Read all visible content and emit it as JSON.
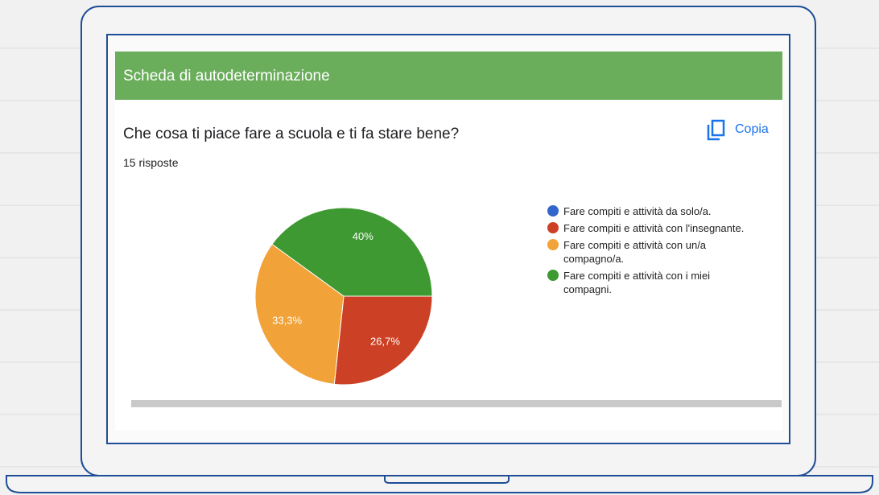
{
  "header": "Scheda di autodeterminazione",
  "copy_button": "Copia",
  "chart_data": {
    "type": "pie",
    "title": "Che cosa ti piace fare a scuola e ti fa stare bene?",
    "subtitle": "15 risposte",
    "categories": [
      "Fare compiti e attività da solo/a.",
      "Fare compiti e attività con l'insegnante.",
      "Fare compiti e attività con un/a compagno/a.",
      "Fare compiti e attività con i miei compagni."
    ],
    "values": [
      0,
      26.7,
      33.3,
      40
    ],
    "value_labels": [
      null,
      "26,7%",
      "33,3%",
      "40%"
    ],
    "colors": [
      "#3366cc",
      "#cc4125",
      "#f1a238",
      "#3e9932"
    ],
    "legend": "right"
  }
}
